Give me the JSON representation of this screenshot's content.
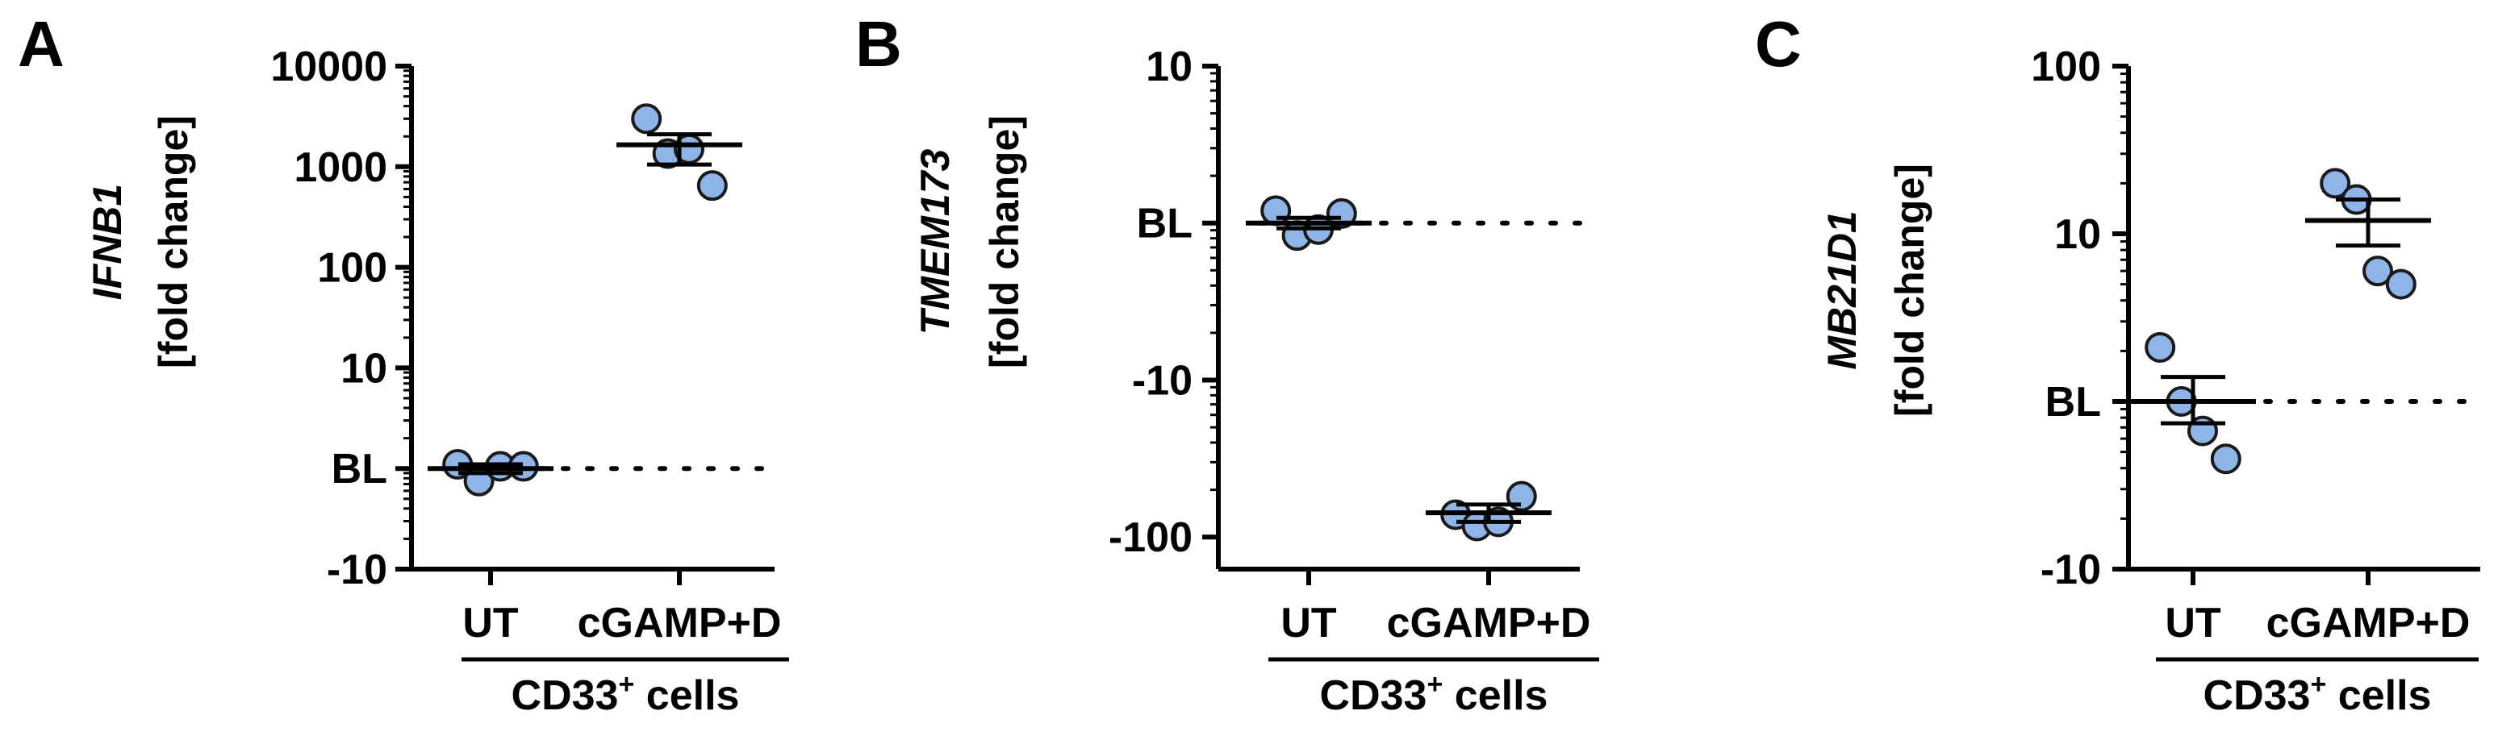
{
  "chart_data": [
    {
      "type": "scatter",
      "panel_letter": "A",
      "ylabel_gene": "IFNB1",
      "ylabel_unit": "[fold change]",
      "y_scale": "log",
      "ylim": [
        -10,
        10000
      ],
      "y_ticks": [
        {
          "value": -10,
          "label": "-10"
        },
        {
          "value": 1,
          "label": "BL"
        },
        {
          "value": 10,
          "label": "10"
        },
        {
          "value": 100,
          "label": "100"
        },
        {
          "value": 1000,
          "label": "1000"
        },
        {
          "value": 10000,
          "label": "10000"
        }
      ],
      "baseline_label": "BL",
      "baseline_value": 1,
      "categories": [
        "UT",
        "cGAMP+D"
      ],
      "group_label": "CD33",
      "group_label_sup": "+",
      "group_label_suffix": " cells",
      "series": [
        {
          "category": "UT",
          "points": [
            1.1,
            0.75,
            1.05,
            1.05
          ],
          "mean": 1.0,
          "sem_low": 0.9,
          "sem_high": 1.1
        },
        {
          "category": "cGAMP+D",
          "points": [
            3000,
            1350,
            1500,
            650
          ],
          "mean": 1650,
          "sem_low": 1050,
          "sem_high": 2100
        }
      ]
    },
    {
      "type": "scatter",
      "panel_letter": "B",
      "ylabel_gene": "TMEM173",
      "ylabel_unit": "[fold change]",
      "y_scale": "symlog",
      "ylim": [
        -160,
        10
      ],
      "y_ticks": [
        {
          "value": 10,
          "label": "10"
        },
        {
          "value": 1,
          "label": "BL"
        },
        {
          "value": -10,
          "label": "-10"
        },
        {
          "value": -100,
          "label": "-100"
        }
      ],
      "baseline_label": "BL",
      "baseline_value": 1,
      "categories": [
        "UT",
        "cGAMP+D"
      ],
      "group_label": "CD33",
      "group_label_sup": "+",
      "group_label_suffix": " cells",
      "series": [
        {
          "category": "UT",
          "points": [
            1.2,
            -1.2,
            -1.1,
            1.15
          ],
          "mean": 1.0,
          "sem_low": -1.08,
          "sem_high": 1.08
        },
        {
          "category": "cGAMP+D",
          "points": [
            -72,
            -85,
            -80,
            -55
          ],
          "mean": -70,
          "sem_low": -80,
          "sem_high": -62
        }
      ]
    },
    {
      "type": "scatter",
      "panel_letter": "C",
      "ylabel_gene": "MB21D1",
      "ylabel_unit": "[fold change]",
      "y_scale": "log",
      "ylim": [
        -10,
        100
      ],
      "y_ticks": [
        {
          "value": -10,
          "label": "-10"
        },
        {
          "value": 1,
          "label": "BL"
        },
        {
          "value": 10,
          "label": "10"
        },
        {
          "value": 100,
          "label": "100"
        }
      ],
      "baseline_label": "BL",
      "baseline_value": 1,
      "categories": [
        "UT",
        "cGAMP+D"
      ],
      "group_label": "CD33",
      "group_label_sup": "+",
      "group_label_suffix": " cells",
      "series": [
        {
          "category": "UT",
          "points": [
            2.1,
            1.0,
            -1.5,
            -2.2
          ],
          "mean": 1.0,
          "sem_low": -1.35,
          "sem_high": 1.4
        },
        {
          "category": "cGAMP+D",
          "points": [
            20,
            16,
            6,
            5
          ],
          "mean": 12,
          "sem_low": 8.5,
          "sem_high": 16
        }
      ]
    }
  ],
  "colors": {
    "point_fill": "#8eb4e8",
    "point_stroke": "#1a1a1a",
    "axis": "#000000"
  }
}
